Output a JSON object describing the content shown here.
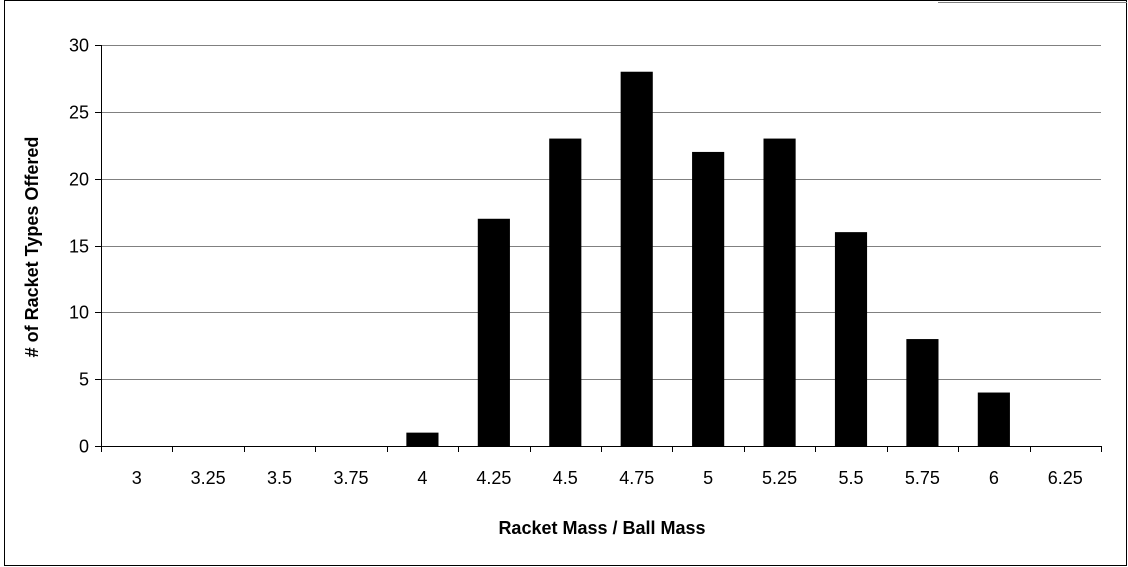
{
  "chart_data": {
    "type": "bar",
    "title": "",
    "xlabel": "Racket Mass / Ball Mass",
    "ylabel": "# of Racket Types Offered",
    "categories": [
      "3",
      "3.25",
      "3.5",
      "3.75",
      "4",
      "4.25",
      "4.5",
      "4.75",
      "5",
      "5.25",
      "5.5",
      "5.75",
      "6",
      "6.25"
    ],
    "values": [
      0,
      0,
      0,
      0,
      1,
      17,
      23,
      28,
      22,
      23,
      16,
      8,
      4,
      0
    ],
    "ylim": [
      0,
      30
    ],
    "yticks": [
      0,
      5,
      10,
      15,
      20,
      25,
      30
    ],
    "grid": true,
    "legend": "none",
    "colors": {
      "bar": "#000000",
      "gridline": "#808080",
      "axis": "#000000",
      "frame": "#000000",
      "background": "#ffffff"
    }
  }
}
